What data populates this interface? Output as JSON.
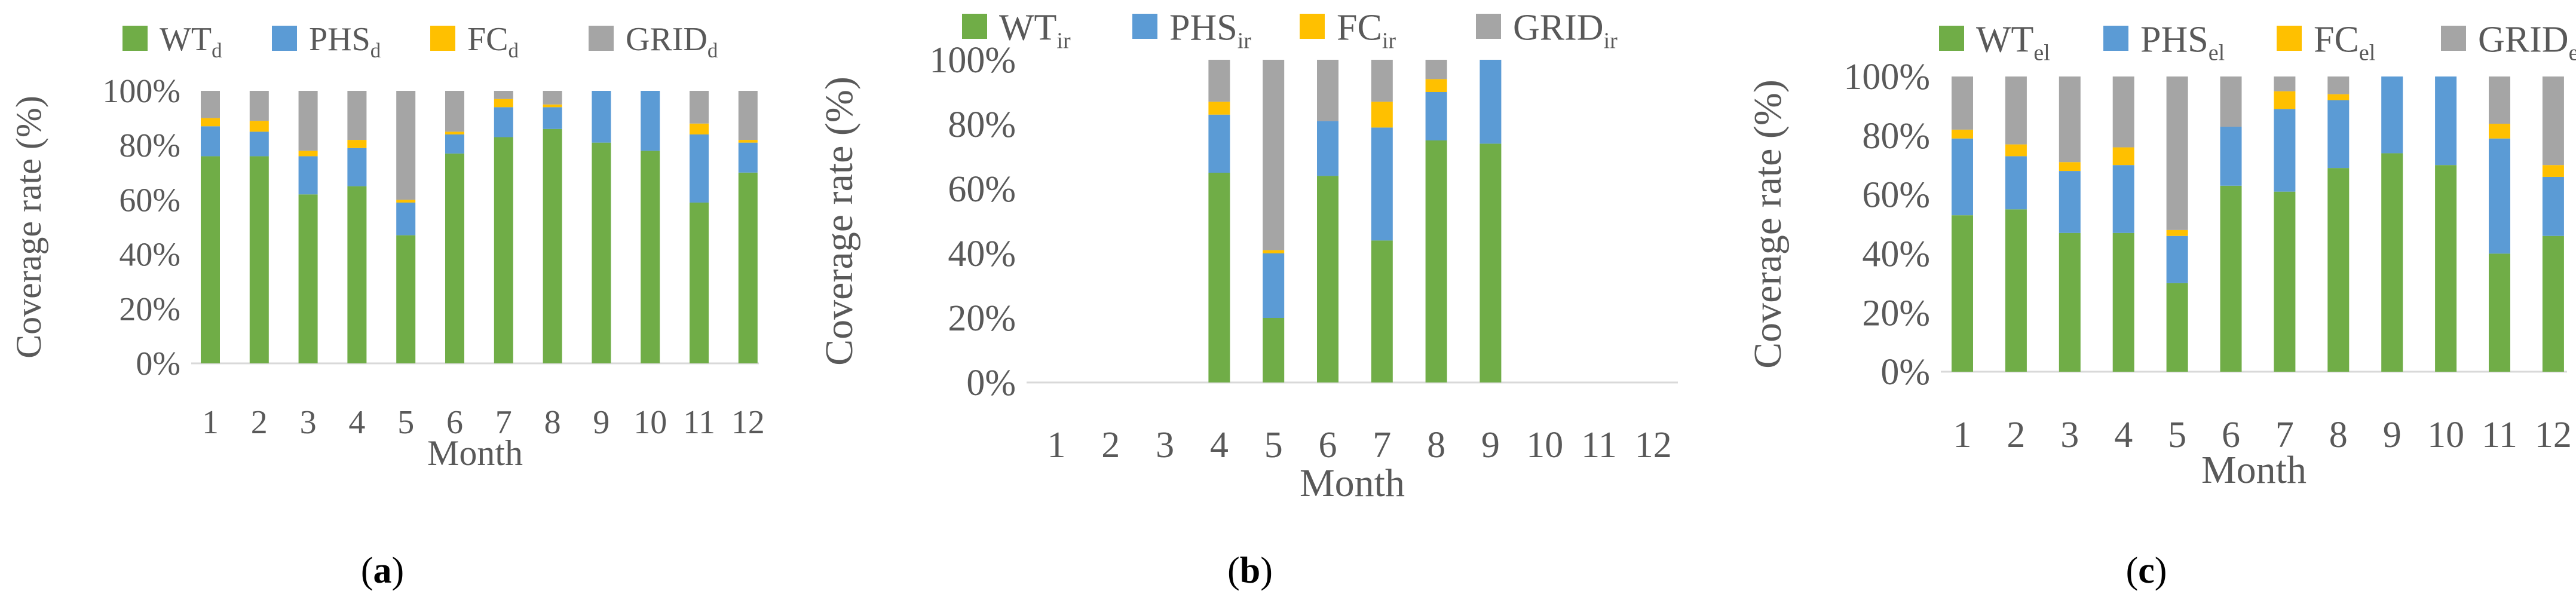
{
  "figure": {
    "months_label": "Month",
    "y_axis_label": "Coverage rate (%)"
  },
  "colors": {
    "WT": "#70AD47",
    "PHS": "#5B9BD5",
    "FC": "#FFC000",
    "GRID": "#A5A5A5"
  },
  "chart_data": [
    {
      "id": "a",
      "type": "bar",
      "stacked": true,
      "panel_label": "a",
      "xlabel": "Month",
      "ylabel": "Coverage rate (%)",
      "ylim": [
        0,
        100
      ],
      "yticks": [
        "0%",
        "20%",
        "40%",
        "60%",
        "80%",
        "100%"
      ],
      "categories": [
        "1",
        "2",
        "3",
        "4",
        "5",
        "6",
        "7",
        "8",
        "9",
        "10",
        "11",
        "12"
      ],
      "legend": [
        {
          "key": "WT",
          "base": "WT",
          "sub": "d"
        },
        {
          "key": "PHS",
          "base": "PHS",
          "sub": "d"
        },
        {
          "key": "FC",
          "base": "FC",
          "sub": "d"
        },
        {
          "key": "GRID",
          "base": "GRID",
          "sub": "d"
        }
      ],
      "series": [
        {
          "name": "WT",
          "values": [
            76,
            76,
            62,
            65,
            47,
            77,
            83,
            86,
            81,
            78,
            59,
            70
          ]
        },
        {
          "name": "PHS",
          "values": [
            11,
            9,
            14,
            14,
            12,
            7,
            11,
            8,
            19,
            22,
            25,
            11
          ]
        },
        {
          "name": "FC",
          "values": [
            3,
            4,
            2,
            3,
            1,
            1,
            3,
            1,
            0,
            0,
            4,
            1
          ]
        },
        {
          "name": "GRID",
          "values": [
            10,
            11,
            22,
            18,
            40,
            15,
            3,
            5,
            0,
            0,
            12,
            18
          ]
        }
      ]
    },
    {
      "id": "b",
      "type": "bar",
      "stacked": true,
      "panel_label": "b",
      "xlabel": "Month",
      "ylabel": "Coverage rate (%)",
      "ylim": [
        0,
        100
      ],
      "yticks": [
        "0%",
        "20%",
        "40%",
        "60%",
        "80%",
        "100%"
      ],
      "categories": [
        "1",
        "2",
        "3",
        "4",
        "5",
        "6",
        "7",
        "8",
        "9",
        "10",
        "11",
        "12"
      ],
      "legend": [
        {
          "key": "WT",
          "base": "WT",
          "sub": "ir"
        },
        {
          "key": "PHS",
          "base": "PHS",
          "sub": "ir"
        },
        {
          "key": "FC",
          "base": "FC",
          "sub": "ir"
        },
        {
          "key": "GRID",
          "base": "GRID",
          "sub": "ir"
        }
      ],
      "series": [
        {
          "name": "WT",
          "values": [
            0,
            0,
            0,
            65,
            20,
            64,
            44,
            75,
            74,
            0,
            0,
            0
          ]
        },
        {
          "name": "PHS",
          "values": [
            0,
            0,
            0,
            18,
            20,
            17,
            35,
            15,
            26,
            0,
            0,
            0
          ]
        },
        {
          "name": "FC",
          "values": [
            0,
            0,
            0,
            4,
            1,
            0,
            8,
            4,
            0,
            0,
            0,
            0
          ]
        },
        {
          "name": "GRID",
          "values": [
            0,
            0,
            0,
            13,
            59,
            19,
            13,
            6,
            0,
            0,
            0,
            0
          ]
        }
      ]
    },
    {
      "id": "c",
      "type": "bar",
      "stacked": true,
      "panel_label": "c",
      "xlabel": "Month",
      "ylabel": "Coverage rate (%)",
      "ylim": [
        0,
        100
      ],
      "yticks": [
        "0%",
        "20%",
        "40%",
        "60%",
        "80%",
        "100%"
      ],
      "categories": [
        "1",
        "2",
        "3",
        "4",
        "5",
        "6",
        "7",
        "8",
        "9",
        "10",
        "11",
        "12"
      ],
      "legend": [
        {
          "key": "WT",
          "base": "WT",
          "sub": "el"
        },
        {
          "key": "PHS",
          "base": "PHS",
          "sub": "el"
        },
        {
          "key": "FC",
          "base": "FC",
          "sub": "el"
        },
        {
          "key": "GRID",
          "base": "GRID",
          "sub": "el"
        }
      ],
      "series": [
        {
          "name": "WT",
          "values": [
            53,
            55,
            47,
            47,
            30,
            63,
            61,
            69,
            74,
            70,
            40,
            46
          ]
        },
        {
          "name": "PHS",
          "values": [
            26,
            18,
            21,
            23,
            16,
            20,
            28,
            23,
            26,
            30,
            39,
            20
          ]
        },
        {
          "name": "FC",
          "values": [
            3,
            4,
            3,
            6,
            2,
            0,
            6,
            2,
            0,
            0,
            5,
            4
          ]
        },
        {
          "name": "GRID",
          "values": [
            18,
            23,
            29,
            24,
            52,
            17,
            5,
            6,
            0,
            0,
            16,
            30
          ]
        }
      ]
    }
  ]
}
